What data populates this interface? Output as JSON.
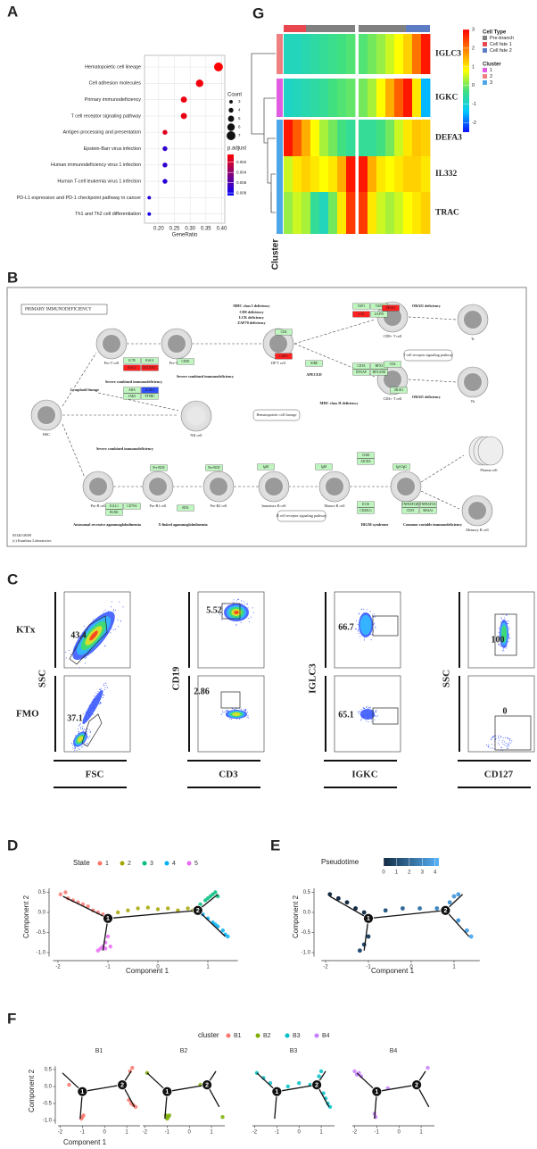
{
  "panels": [
    "A",
    "B",
    "C",
    "D",
    "E",
    "F",
    "G"
  ],
  "chart_data": [
    {
      "type": "dot",
      "categories": [
        "Hematopoietic cell lineage",
        "Cell adhesion molecules",
        "Primary immunodeficiency",
        "T cell receptor signaling pathway",
        "Antigen processing and presentation",
        "Epstein-Barr virus infection",
        "Human immunodeficiency virus 1 infection",
        "Human T-cell leukemia virus 1 infection",
        "PD-L1 expression and PD-1 checkpoint pathway in cancer",
        "Th1 and Th2 cell differentiation"
      ],
      "values": [
        0.39,
        0.33,
        0.28,
        0.28,
        0.22,
        0.22,
        0.22,
        0.22,
        0.17,
        0.17
      ],
      "count": [
        7,
        6,
        5,
        5,
        4,
        4,
        4,
        4,
        3,
        3
      ],
      "p_adjust": [
        0.0005,
        0.0008,
        0.001,
        0.0012,
        0.0015,
        0.007,
        0.007,
        0.0072,
        0.0075,
        0.0078
      ],
      "xlabel": "GeneRatio",
      "xlim": [
        0.155,
        0.41
      ],
      "xticks": [
        {
          "value": 0.2,
          "label": "0.20"
        },
        0.25,
        {
          "value": 0.3,
          "label": "0.30"
        },
        0.35,
        {
          "value": 0.4,
          "label": "0.40"
        }
      ],
      "size_legend": {
        "title": "Count",
        "values": [
          3,
          4,
          5,
          6,
          7
        ]
      },
      "color_legend": {
        "title": "p.adjust",
        "ticks": [
          0.002,
          0.004,
          0.006,
          0.008
        ],
        "lim": [
          0.0005,
          0.0085
        ],
        "colors": [
          "#ff0000",
          "#0000ff"
        ]
      },
      "grid": true
    },
    {
      "type": "trajectory",
      "legend_title": "State",
      "xlabel": "Component 1",
      "ylabel": "Component 2",
      "xlim": [
        -2.1,
        1.6
      ],
      "ylim": [
        -1.1,
        0.6
      ],
      "xticks": [
        -2,
        -1,
        0,
        1
      ],
      "yticks": [
        0.5,
        {
          "value": 0,
          "label": "0.0"
        },
        -0.5,
        {
          "value": -1,
          "label": "-1.0"
        }
      ],
      "series": [
        {
          "name": "1",
          "color": "#F8766D",
          "x": [
            -1.95,
            -1.85,
            -1.8,
            -1.7,
            -1.6,
            -1.5,
            -1.4,
            -1.3,
            -1.2,
            -1.1
          ],
          "values": [
            0.45,
            0.5,
            0.35,
            0.3,
            0.25,
            0.2,
            0.15,
            0.05,
            0.0,
            -0.05
          ]
        },
        {
          "name": "2",
          "color": "#A3A500",
          "x": [
            -0.8,
            -0.6,
            -0.4,
            -0.2,
            0,
            0.2,
            0.4,
            0.6,
            0.7
          ],
          "values": [
            0.0,
            0.05,
            0.1,
            0.12,
            0.08,
            0.1,
            0.05,
            0.1,
            0.05
          ]
        },
        {
          "name": "3",
          "color": "#00BF7D",
          "x": [
            0.85,
            0.95,
            1.0,
            1.05,
            1.1,
            1.15,
            1.2
          ],
          "values": [
            0.2,
            0.3,
            0.35,
            0.4,
            0.45,
            0.5,
            0.4
          ]
        },
        {
          "name": "4",
          "color": "#00B0F6",
          "x": [
            0.9,
            1.0,
            1.1,
            1.15,
            1.2,
            1.3,
            1.35,
            1.4
          ],
          "values": [
            -0.05,
            -0.15,
            -0.25,
            -0.3,
            -0.35,
            -0.45,
            -0.55,
            -0.6
          ]
        },
        {
          "name": "5",
          "color": "#E76BF3",
          "x": [
            -1.0,
            -1.05,
            -1.1,
            -1.15,
            -1.2,
            -1.05,
            -0.95
          ],
          "values": [
            -0.6,
            -0.75,
            -0.85,
            -0.9,
            -0.95,
            -0.9,
            -0.85
          ]
        }
      ],
      "branches": [
        {
          "x": [
            -1.9,
            -1.0
          ],
          "y": [
            0.4,
            -0.15
          ]
        },
        {
          "x": [
            -1.0,
            0.8
          ],
          "y": [
            -0.15,
            0.05
          ]
        },
        {
          "x": [
            0.8,
            1.2
          ],
          "y": [
            0.05,
            0.45
          ]
        },
        {
          "x": [
            0.8,
            1.35
          ],
          "y": [
            0.05,
            -0.6
          ]
        },
        {
          "x": [
            -1.0,
            -1.1
          ],
          "y": [
            -0.15,
            -0.95
          ]
        }
      ],
      "nodes": [
        {
          "label": "1",
          "x": -1.0,
          "y": -0.15
        },
        {
          "label": "2",
          "x": 0.8,
          "y": 0.05
        }
      ]
    },
    {
      "type": "trajectory-gradient",
      "legend_title": "Pseudotime",
      "xlabel": "Component 1",
      "ylabel": "Component 2",
      "xlim": [
        -2.1,
        1.6
      ],
      "ylim": [
        -1.1,
        0.6
      ],
      "xticks": [
        -2,
        -1,
        0,
        1
      ],
      "yticks": [
        0.5,
        {
          "value": 0,
          "label": "0.0"
        },
        -0.5,
        {
          "value": -1,
          "label": "-1.0"
        }
      ],
      "x": [
        -1.9,
        -1.7,
        -1.5,
        -1.3,
        -1.1,
        -1.0,
        -1.1,
        -1.2,
        -0.6,
        -0.2,
        0.2,
        0.6,
        0.9,
        1.0,
        1.1,
        1.1,
        1.3,
        1.4
      ],
      "values": [
        0.45,
        0.35,
        0.25,
        0.1,
        0.0,
        -0.6,
        -0.8,
        -0.95,
        0.05,
        0.1,
        0.1,
        0.1,
        0.25,
        0.4,
        0.45,
        -0.2,
        -0.45,
        -0.6
      ],
      "pseudotime": [
        0,
        0,
        0,
        0,
        0.2,
        0.8,
        1,
        1.1,
        1.5,
        2,
        2.5,
        3,
        3.4,
        3.7,
        3.8,
        3.5,
        3.9,
        4.2
      ],
      "color_ticks": [
        0,
        1,
        2,
        3,
        4
      ],
      "color_lim": [
        0,
        4.3
      ],
      "colors": [
        "#132B43",
        "#56B1F7"
      ]
    },
    {
      "type": "trajectory-facets",
      "legend_title": "cluster",
      "xlabel": "Component 1",
      "ylabel": "Component 2",
      "xlim": [
        -2.1,
        1.6
      ],
      "ylim": [
        -1.1,
        0.6
      ],
      "xticks": [
        -2,
        -1,
        0,
        1
      ],
      "yticks": [
        0.5,
        {
          "value": 0,
          "label": "0.0"
        },
        -0.5,
        {
          "value": -1,
          "label": "-1.0"
        }
      ],
      "series": [
        {
          "name": "B1",
          "color": "#F8766D",
          "x": [
            -1.6,
            -1.0,
            -1.05,
            -0.95,
            1.1,
            1.2,
            1.3,
            1.4,
            1.15,
            1.25
          ],
          "values": [
            0.05,
            -0.9,
            -0.95,
            -0.85,
            -0.4,
            -0.5,
            -0.55,
            -0.6,
            0.45,
            0.55
          ]
        },
        {
          "name": "B2",
          "color": "#7CAE00",
          "x": [
            -1.9,
            -1.1,
            -1.05,
            -1.0,
            -0.95,
            -0.9,
            0.5,
            1.5
          ],
          "values": [
            0.4,
            -0.2,
            -0.85,
            -0.95,
            -0.9,
            -0.85,
            0.05,
            -0.9
          ]
        },
        {
          "name": "B3",
          "color": "#00BFC4",
          "x": [
            -1.9,
            -1.6,
            -1.3,
            -1.0,
            -0.5,
            0,
            0.5,
            0.9,
            1.0,
            1.1,
            1.2,
            1.3,
            1.4
          ],
          "values": [
            0.4,
            0.25,
            0.1,
            -0.1,
            0.0,
            0.1,
            0.05,
            0.3,
            0.45,
            -0.2,
            -0.35,
            -0.5,
            -0.6
          ]
        },
        {
          "name": "B4",
          "color": "#C77CFF",
          "x": [
            -2.0,
            -1.9,
            -1.8,
            -1.7,
            -1.1,
            -1.05,
            -0.5,
            1.3
          ],
          "values": [
            0.45,
            0.35,
            0.4,
            0.3,
            -0.8,
            -0.9,
            -0.05,
            0.55
          ]
        }
      ]
    },
    {
      "type": "heatmap",
      "categories": [
        "IGLC3",
        "IGKC",
        "DEFA3",
        "IL332",
        "TRAC"
      ],
      "values": [
        [
          -0.8,
          -0.8,
          -0.7,
          -0.6,
          -0.5,
          -0.4,
          -0.3,
          -0.2,
          -0.2,
          0,
          0.2,
          0.5,
          0.8,
          1.2,
          2,
          2.8
        ],
        [
          -0.9,
          -0.8,
          -0.7,
          -0.6,
          -0.5,
          -0.3,
          -0.2,
          -0.1,
          0,
          0.3,
          0.8,
          1.5,
          2.2,
          2.8,
          1,
          -1.5
        ],
        [
          2.8,
          2.2,
          1.5,
          0.8,
          0.3,
          0,
          -0.3,
          -0.5,
          -0.5,
          -0.5,
          -0.3,
          0,
          0.5,
          1,
          1.3,
          1.2
        ],
        [
          0.5,
          1,
          1.2,
          1,
          0.8,
          1,
          1.5,
          2.8,
          2.8,
          1.5,
          1,
          0.8,
          1,
          1.2,
          1.2,
          1
        ],
        [
          0.2,
          0.5,
          0.3,
          -0.5,
          -0.8,
          0,
          1,
          2.5,
          2.5,
          1,
          0.5,
          0.3,
          0.5,
          0.8,
          1,
          1.2
        ]
      ],
      "zlim": [
        -2.5,
        3
      ],
      "colorbar_ticks": [
        3,
        2,
        1,
        0,
        -1,
        -2
      ],
      "colors": [
        "#1010ff",
        "#00c8ff",
        "#40e080",
        "#ffff00",
        "#ff8000",
        "#ff0000"
      ],
      "cell_type": {
        "title": "Cell Type",
        "items": [
          {
            "name": "Pre-branch",
            "color": "#808080"
          },
          {
            "name": "Cell fate 1",
            "color": "#E8474F"
          },
          {
            "name": "Cell fate 2",
            "color": "#5C7CC4"
          }
        ]
      },
      "cluster": {
        "title": "Cluster",
        "items": [
          {
            "name": "1",
            "color": "#E05CE0"
          },
          {
            "name": "2",
            "color": "#F08080"
          },
          {
            "name": "3",
            "color": "#4DA6E8"
          }
        ]
      },
      "row_clusters": [
        "2",
        "1",
        "3",
        "3",
        "3"
      ],
      "row_label": "Cluster"
    }
  ],
  "pathway": {
    "title": "PRIMARY IMMUNODEFICIENCY",
    "cells": [
      "HSC",
      "Pro-T cell",
      "Pre-T cell",
      "DP T cell",
      "CD8+ T cell",
      "Tc",
      "CD4+ T cell",
      "Th",
      "NK cell",
      "Pro-B cell",
      "Pre-B1 cell",
      "Pre-B2 cell",
      "Immature B cell",
      "Mature B cell",
      "B cell",
      "Memory B cell",
      "Plasma cell"
    ],
    "notes": [
      "Lymphoid lineage",
      "Severe combined immunodeficiency",
      "Severe combined immunodeficiency",
      "MHC class I deficiency",
      "CD8 deficiency",
      "LCK deficiency",
      "ZAP70 deficiency",
      "APECED",
      "MHC class II deficiency",
      "ORAI1 deficiency",
      "ORAI1 deficiency",
      "Severe combined immunodeficiency",
      "X-linked agammaglobulinemia",
      "Autosomal recessive agammaglobulinemia",
      "HIGM syndrome",
      "Common variable immunodeficiency"
    ],
    "boxes": [
      "Hematopoietic cell lineage",
      "T cell receptor signaling pathway",
      "B cell receptor signaling pathway"
    ],
    "genes": [
      {
        "name": "IL7R",
        "color": "#bff5bf"
      },
      {
        "name": "RAG1",
        "color": "#bff5bf"
      },
      {
        "name": "RAG2",
        "color": "#ff2020"
      },
      {
        "name": "DCLRE1C",
        "color": "#ff2020"
      },
      {
        "name": "ADA",
        "color": "#bff5bf"
      },
      {
        "name": "IL2RG",
        "color": "#3050ff"
      },
      {
        "name": "JAK3",
        "color": "#bff5bf"
      },
      {
        "name": "PTPRC",
        "color": "#bff5bf"
      },
      {
        "name": "CD3E",
        "color": "#bff5bf"
      },
      {
        "name": "CD4",
        "color": "#bff5bf"
      },
      {
        "name": "CD8A",
        "color": "#ff2020"
      },
      {
        "name": "TAP1",
        "color": "#bff5bf"
      },
      {
        "name": "TAP2",
        "color": "#bff5bf"
      },
      {
        "name": "LCK",
        "color": "#ff2020"
      },
      {
        "name": "ZAP70",
        "color": "#bff5bf"
      },
      {
        "name": "CIITA",
        "color": "#bff5bf"
      },
      {
        "name": "RFX5",
        "color": "#bff5bf"
      },
      {
        "name": "RFXAP",
        "color": "#bff5bf"
      },
      {
        "name": "RFXANK",
        "color": "#bff5bf"
      },
      {
        "name": "AIRE",
        "color": "#bff5bf"
      },
      {
        "name": "CD4",
        "color": "#bff5bf"
      },
      {
        "name": "ORAI1",
        "color": "#ff2020"
      },
      {
        "name": "ORAI1",
        "color": "#bff5bf"
      },
      {
        "name": "Pre-BCR",
        "color": "#bff5bf"
      },
      {
        "name": "Pre-BCR",
        "color": "#bff5bf"
      },
      {
        "name": "IgM",
        "color": "#bff5bf"
      },
      {
        "name": "IgM",
        "color": "#bff5bf"
      },
      {
        "name": "IgA/IgG",
        "color": "#bff5bf"
      },
      {
        "name": "CD40",
        "color": "#bff5bf"
      },
      {
        "name": "AICDA",
        "color": "#bff5bf"
      },
      {
        "name": "BTK",
        "color": "#bff5bf"
      },
      {
        "name": "IGLL1",
        "color": "#bff5bf"
      },
      {
        "name": "CD79A",
        "color": "#bff5bf"
      },
      {
        "name": "BLNK",
        "color": "#bff5bf"
      },
      {
        "name": "ICOS",
        "color": "#bff5bf"
      },
      {
        "name": "CD40LG",
        "color": "#bff5bf"
      },
      {
        "name": "TNFRSF13B",
        "color": "#bff5bf"
      },
      {
        "name": "TNFRSF13C",
        "color": "#bff5bf"
      },
      {
        "name": "CD19",
        "color": "#bff5bf"
      },
      {
        "name": "MS4A1",
        "color": "#bff5bf"
      }
    ],
    "footer": [
      "05340 08/09",
      "(c) Kanehisa Laboratories"
    ]
  },
  "flow": {
    "row_labels": [
      "KTx",
      "FMO"
    ],
    "y_labels": [
      "SSC",
      "CD19",
      "IGLC3",
      "SSC"
    ],
    "x_labels": [
      "FSC",
      "CD3",
      "IGKC",
      "CD127"
    ],
    "gates": [
      [
        43.4,
        37.1
      ],
      [
        5.52,
        2.86
      ],
      [
        66.7,
        65.1
      ],
      [
        100,
        0
      ]
    ]
  }
}
